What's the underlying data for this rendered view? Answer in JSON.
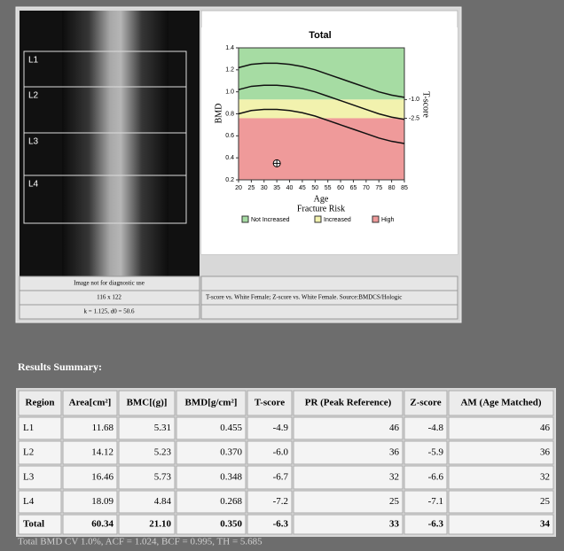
{
  "image": {
    "labels": [
      "L1",
      "L2",
      "L3",
      "L4"
    ],
    "notes": [
      "Image not for diagnostic use",
      "116 x 122",
      "k = 1.125, d0 = 50.6"
    ],
    "source": "T-score vs. White Female; Z-score vs. White Female. Source:BMDCS/Hologic"
  },
  "chart_data": {
    "type": "line",
    "title": "Total",
    "x_label": "Age",
    "subtitle": "Fracture Risk",
    "y_label": "BMD",
    "y2_label": "T-score",
    "xlim": [
      20,
      85
    ],
    "xticks": [
      20,
      25,
      30,
      35,
      40,
      45,
      50,
      55,
      60,
      65,
      70,
      75,
      80,
      85
    ],
    "ylim": [
      0.2,
      1.4
    ],
    "yticks": [
      0.2,
      0.4,
      0.6,
      0.8,
      {
        "value": 1,
        "label": "1.0"
      },
      1.2,
      1.4
    ],
    "y2lim": [
      -7.44,
      3.15
    ],
    "y2ticks": [
      {
        "value": -1,
        "label": "-1.0"
      },
      -2.5
    ],
    "zones": [
      {
        "name": "Not Increased",
        "color": "#a6dca3",
        "from": 0.93,
        "to": 1.4
      },
      {
        "name": "Increased",
        "color": "#f2f2ae",
        "from": 0.76,
        "to": 0.93
      },
      {
        "name": "High",
        "color": "#ef9a9a",
        "from": 0.2,
        "to": 0.76
      }
    ],
    "x": [
      20,
      25,
      30,
      35,
      40,
      45,
      50,
      55,
      60,
      65,
      70,
      75,
      80,
      85
    ],
    "curves": [
      {
        "values": [
          1.22,
          1.25,
          1.26,
          1.26,
          1.25,
          1.23,
          1.2,
          1.16,
          1.12,
          1.08,
          1.04,
          1.0,
          0.97,
          0.95
        ]
      },
      {
        "values": [
          1.02,
          1.05,
          1.06,
          1.06,
          1.05,
          1.03,
          1.0,
          0.96,
          0.92,
          0.88,
          0.84,
          0.8,
          0.77,
          0.75
        ]
      },
      {
        "values": [
          0.8,
          0.83,
          0.84,
          0.84,
          0.83,
          0.81,
          0.78,
          0.74,
          0.7,
          0.66,
          0.62,
          0.58,
          0.55,
          0.53
        ]
      }
    ],
    "point": {
      "x": 35,
      "y": 0.35
    }
  },
  "summary": {
    "title": "Results Summary:",
    "table": {
      "header": [
        "Region",
        "Area[cm²]",
        "BMC[(g)]",
        "BMD[g/cm²]",
        "T-score",
        "PR (Peak Reference)",
        "Z-score",
        "AM (Age Matched)"
      ],
      "rows": [
        [
          "L1",
          "11.68",
          "5.31",
          "0.455",
          "-4.9",
          "46",
          "-4.8",
          "46"
        ],
        [
          "L2",
          "14.12",
          "5.23",
          "0.370",
          "-6.0",
          "36",
          "-5.9",
          "36"
        ],
        [
          "L3",
          "16.46",
          "5.73",
          "0.348",
          "-6.7",
          "32",
          "-6.6",
          "32"
        ],
        [
          "L4",
          "18.09",
          "4.84",
          "0.268",
          "-7.2",
          "25",
          "-7.1",
          "25"
        ],
        [
          "Total",
          "60.34",
          "21.10",
          "0.350",
          "-6.3",
          "33",
          "-6.3",
          "34"
        ]
      ]
    },
    "footer": "Total BMD CV 1.0%, ACF = 1.024, BCF = 0.995, TH = 5.685"
  }
}
